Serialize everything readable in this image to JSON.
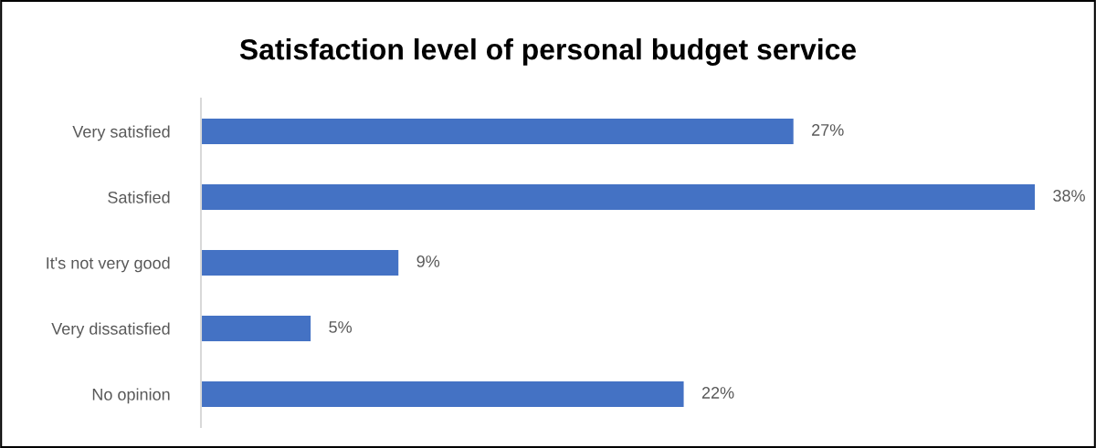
{
  "chart_data": {
    "type": "bar",
    "orientation": "horizontal",
    "title": "Satisfaction level of personal budget service",
    "categories": [
      "Very satisfied",
      "Satisfied",
      "It's not very good",
      "Very dissatisfied",
      "No opinion"
    ],
    "series": [
      {
        "color": "#4472c4",
        "values": [
          27,
          38,
          9,
          5,
          22
        ],
        "value_labels": [
          "27%",
          "38%",
          "9%",
          "5%",
          "22%"
        ]
      }
    ],
    "grid": false,
    "legend": false
  }
}
